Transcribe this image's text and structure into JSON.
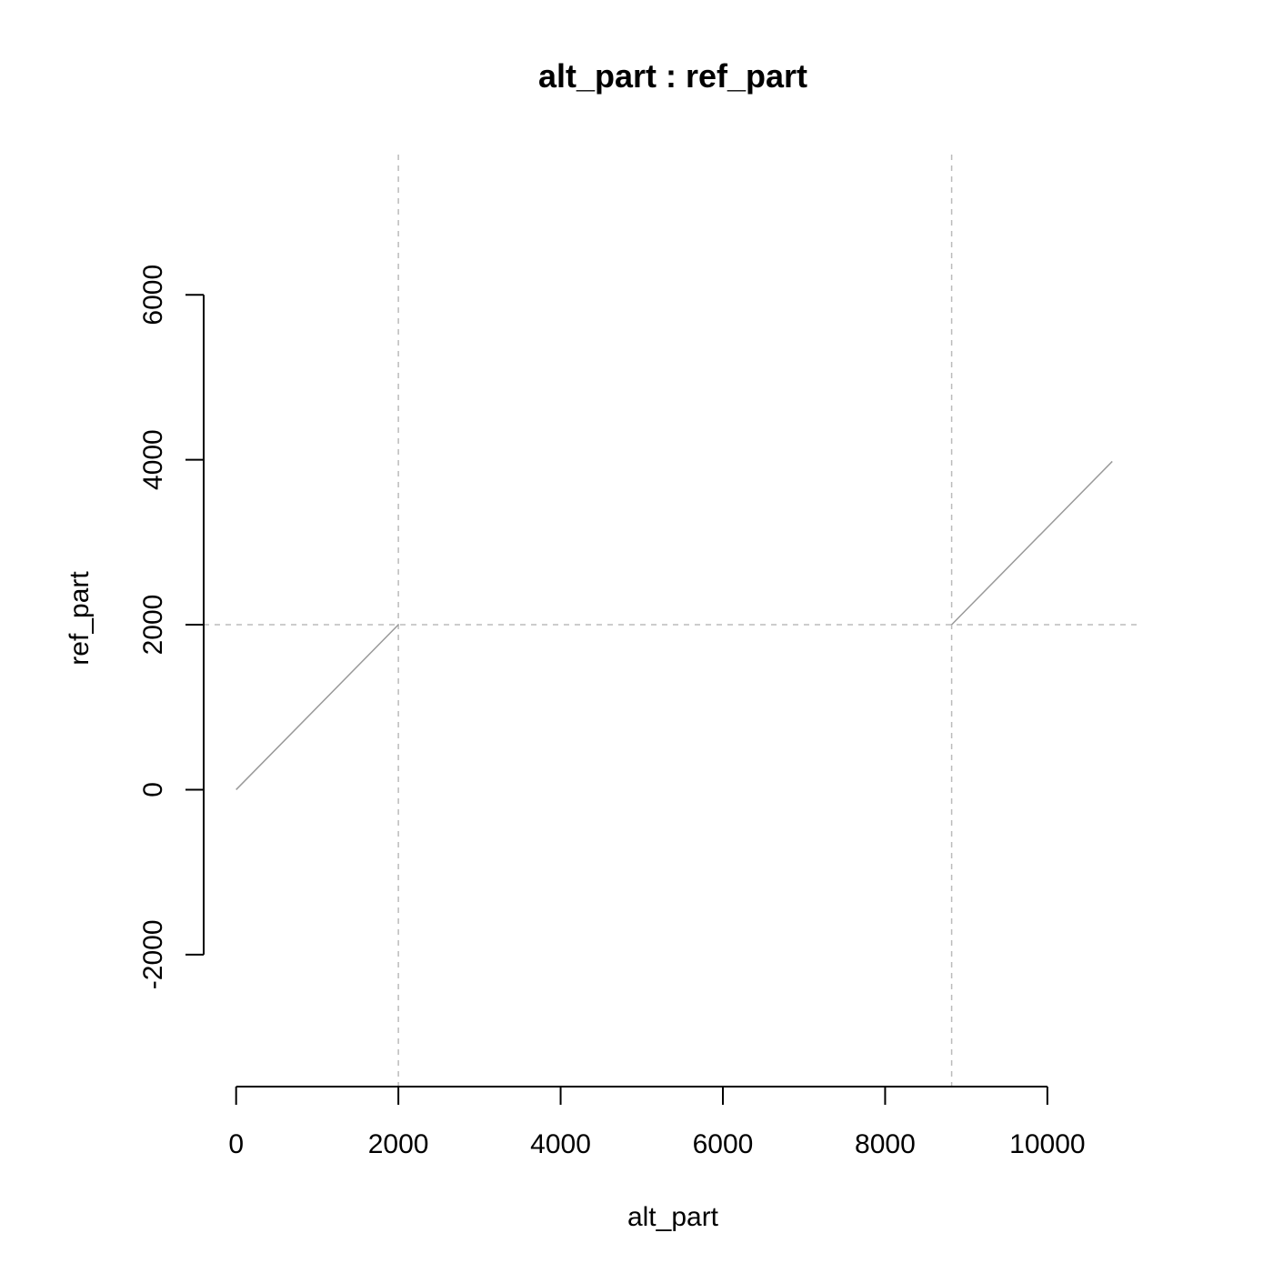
{
  "chart_data": {
    "type": "line",
    "title": "alt_part : ref_part",
    "xlabel": "alt_part",
    "ylabel": "ref_part",
    "xlim": [
      -400,
      11100
    ],
    "ylim": [
      -3600,
      7700
    ],
    "x_ticks": [
      0,
      2000,
      4000,
      6000,
      8000,
      10000
    ],
    "y_ticks": [
      -2000,
      0,
      2000,
      4000,
      6000
    ],
    "x_tick_labels": [
      "0",
      "2000",
      "4000",
      "6000",
      "8000",
      "10000"
    ],
    "y_tick_labels": [
      "-2000",
      "0",
      "2000",
      "4000",
      "6000"
    ],
    "series": [
      {
        "points": [
          [
            0,
            0
          ],
          [
            2000,
            2000
          ]
        ]
      },
      {
        "points": [
          [
            8820,
            2000
          ],
          [
            10800,
            3980
          ]
        ]
      }
    ],
    "reference_lines": {
      "vertical": [
        2000,
        8820
      ],
      "horizontal": [
        2000
      ]
    },
    "grid": false,
    "colors": {
      "series": "#999999",
      "reference": "#bbbbbb",
      "axis": "#000000"
    }
  }
}
